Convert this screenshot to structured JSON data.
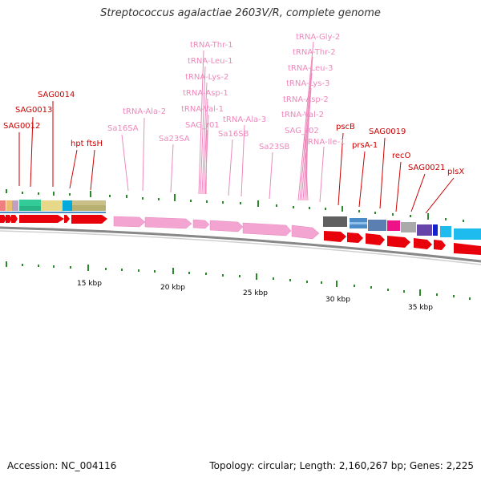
{
  "title": "Streptococcus agalactiae 2603V/R, complete genome",
  "accession": "Accession: NC_004116",
  "topology": "Topology: circular; Length: 2,160,267 bp; Genes: 2,225",
  "colors": {
    "cds_label": "#cc0000",
    "rna_label": "#ee88bb",
    "backbone": "#999999",
    "tick": "#2a8a2a"
  },
  "scale_labels": [
    "15 kbp",
    "20 kbp",
    "25 kbp",
    "30 kbp",
    "35 kbp"
  ],
  "labels_red": [
    "SAG0012",
    "SAG0013",
    "SAG0014",
    "hpt",
    "ftsH",
    "pscB",
    "prsA-1",
    "SAG0019",
    "recO",
    "SAG0021",
    "plsX"
  ],
  "labels_pink": [
    "Sa16SA",
    "tRNA-Ala-2",
    "Sa23SA",
    "tRNA-Thr-1",
    "tRNA-Leu-1",
    "tRNA-Lys-2",
    "tRNA-Asp-1",
    "tRNA-Val-1",
    "SAG_r01",
    "Sa16SB",
    "tRNA-Ala-3",
    "Sa23SB",
    "tRNA-Gly-2",
    "tRNA-Thr-2",
    "tRNA-Leu-3",
    "tRNA-Lys-3",
    "tRNA-Asp-2",
    "tRNA-Val-2",
    "SAG_r02",
    "tRNA-Ile-1"
  ]
}
